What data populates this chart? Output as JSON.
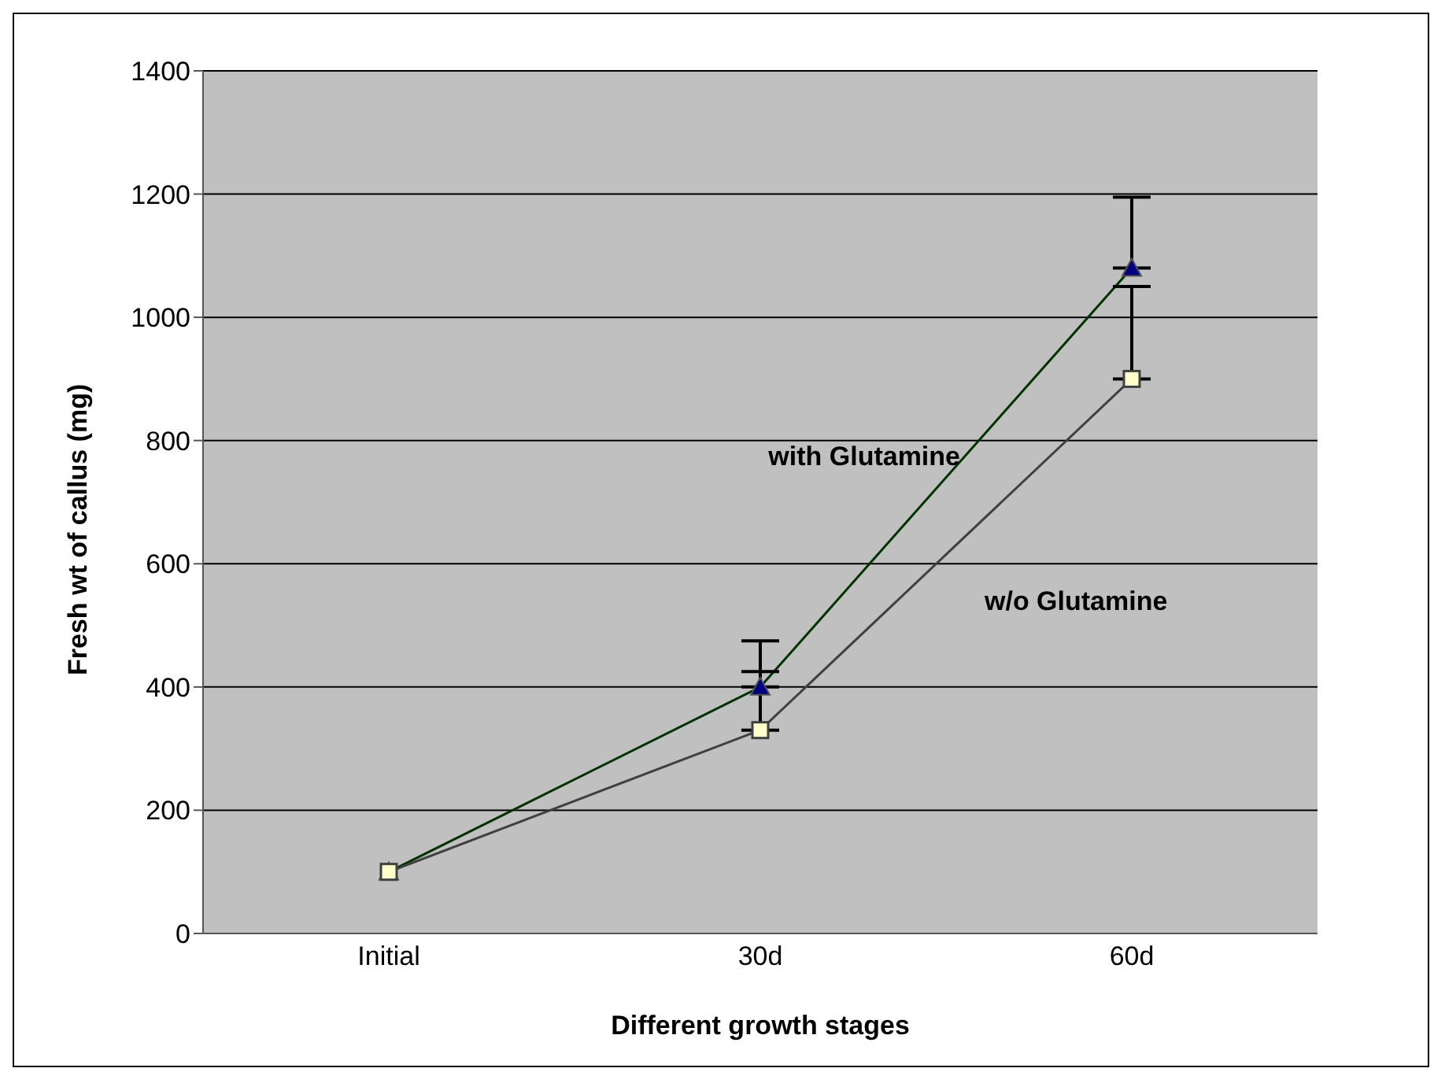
{
  "chart_data": {
    "type": "line",
    "xlabel": "Different growth stages",
    "ylabel": "Fresh wt of callus (mg)",
    "categories": [
      "Initial",
      "30d",
      "60d"
    ],
    "series": [
      {
        "name": "with Glutamine",
        "color": "#003300",
        "marker": "triangle",
        "values": [
          100,
          400,
          1080
        ],
        "errors": [
          null,
          [
            400,
            475
          ],
          [
            1080,
            1195
          ]
        ]
      },
      {
        "name": "w/o Glutamine",
        "color": "#404040",
        "marker": "square",
        "values": [
          100,
          330,
          900
        ],
        "errors": [
          null,
          [
            330,
            425
          ],
          [
            900,
            1050
          ]
        ]
      }
    ],
    "ylim": [
      0,
      1400
    ],
    "yticks": [
      0,
      200,
      400,
      600,
      800,
      1000,
      1200,
      1400
    ],
    "grid": "y",
    "legend": false
  }
}
